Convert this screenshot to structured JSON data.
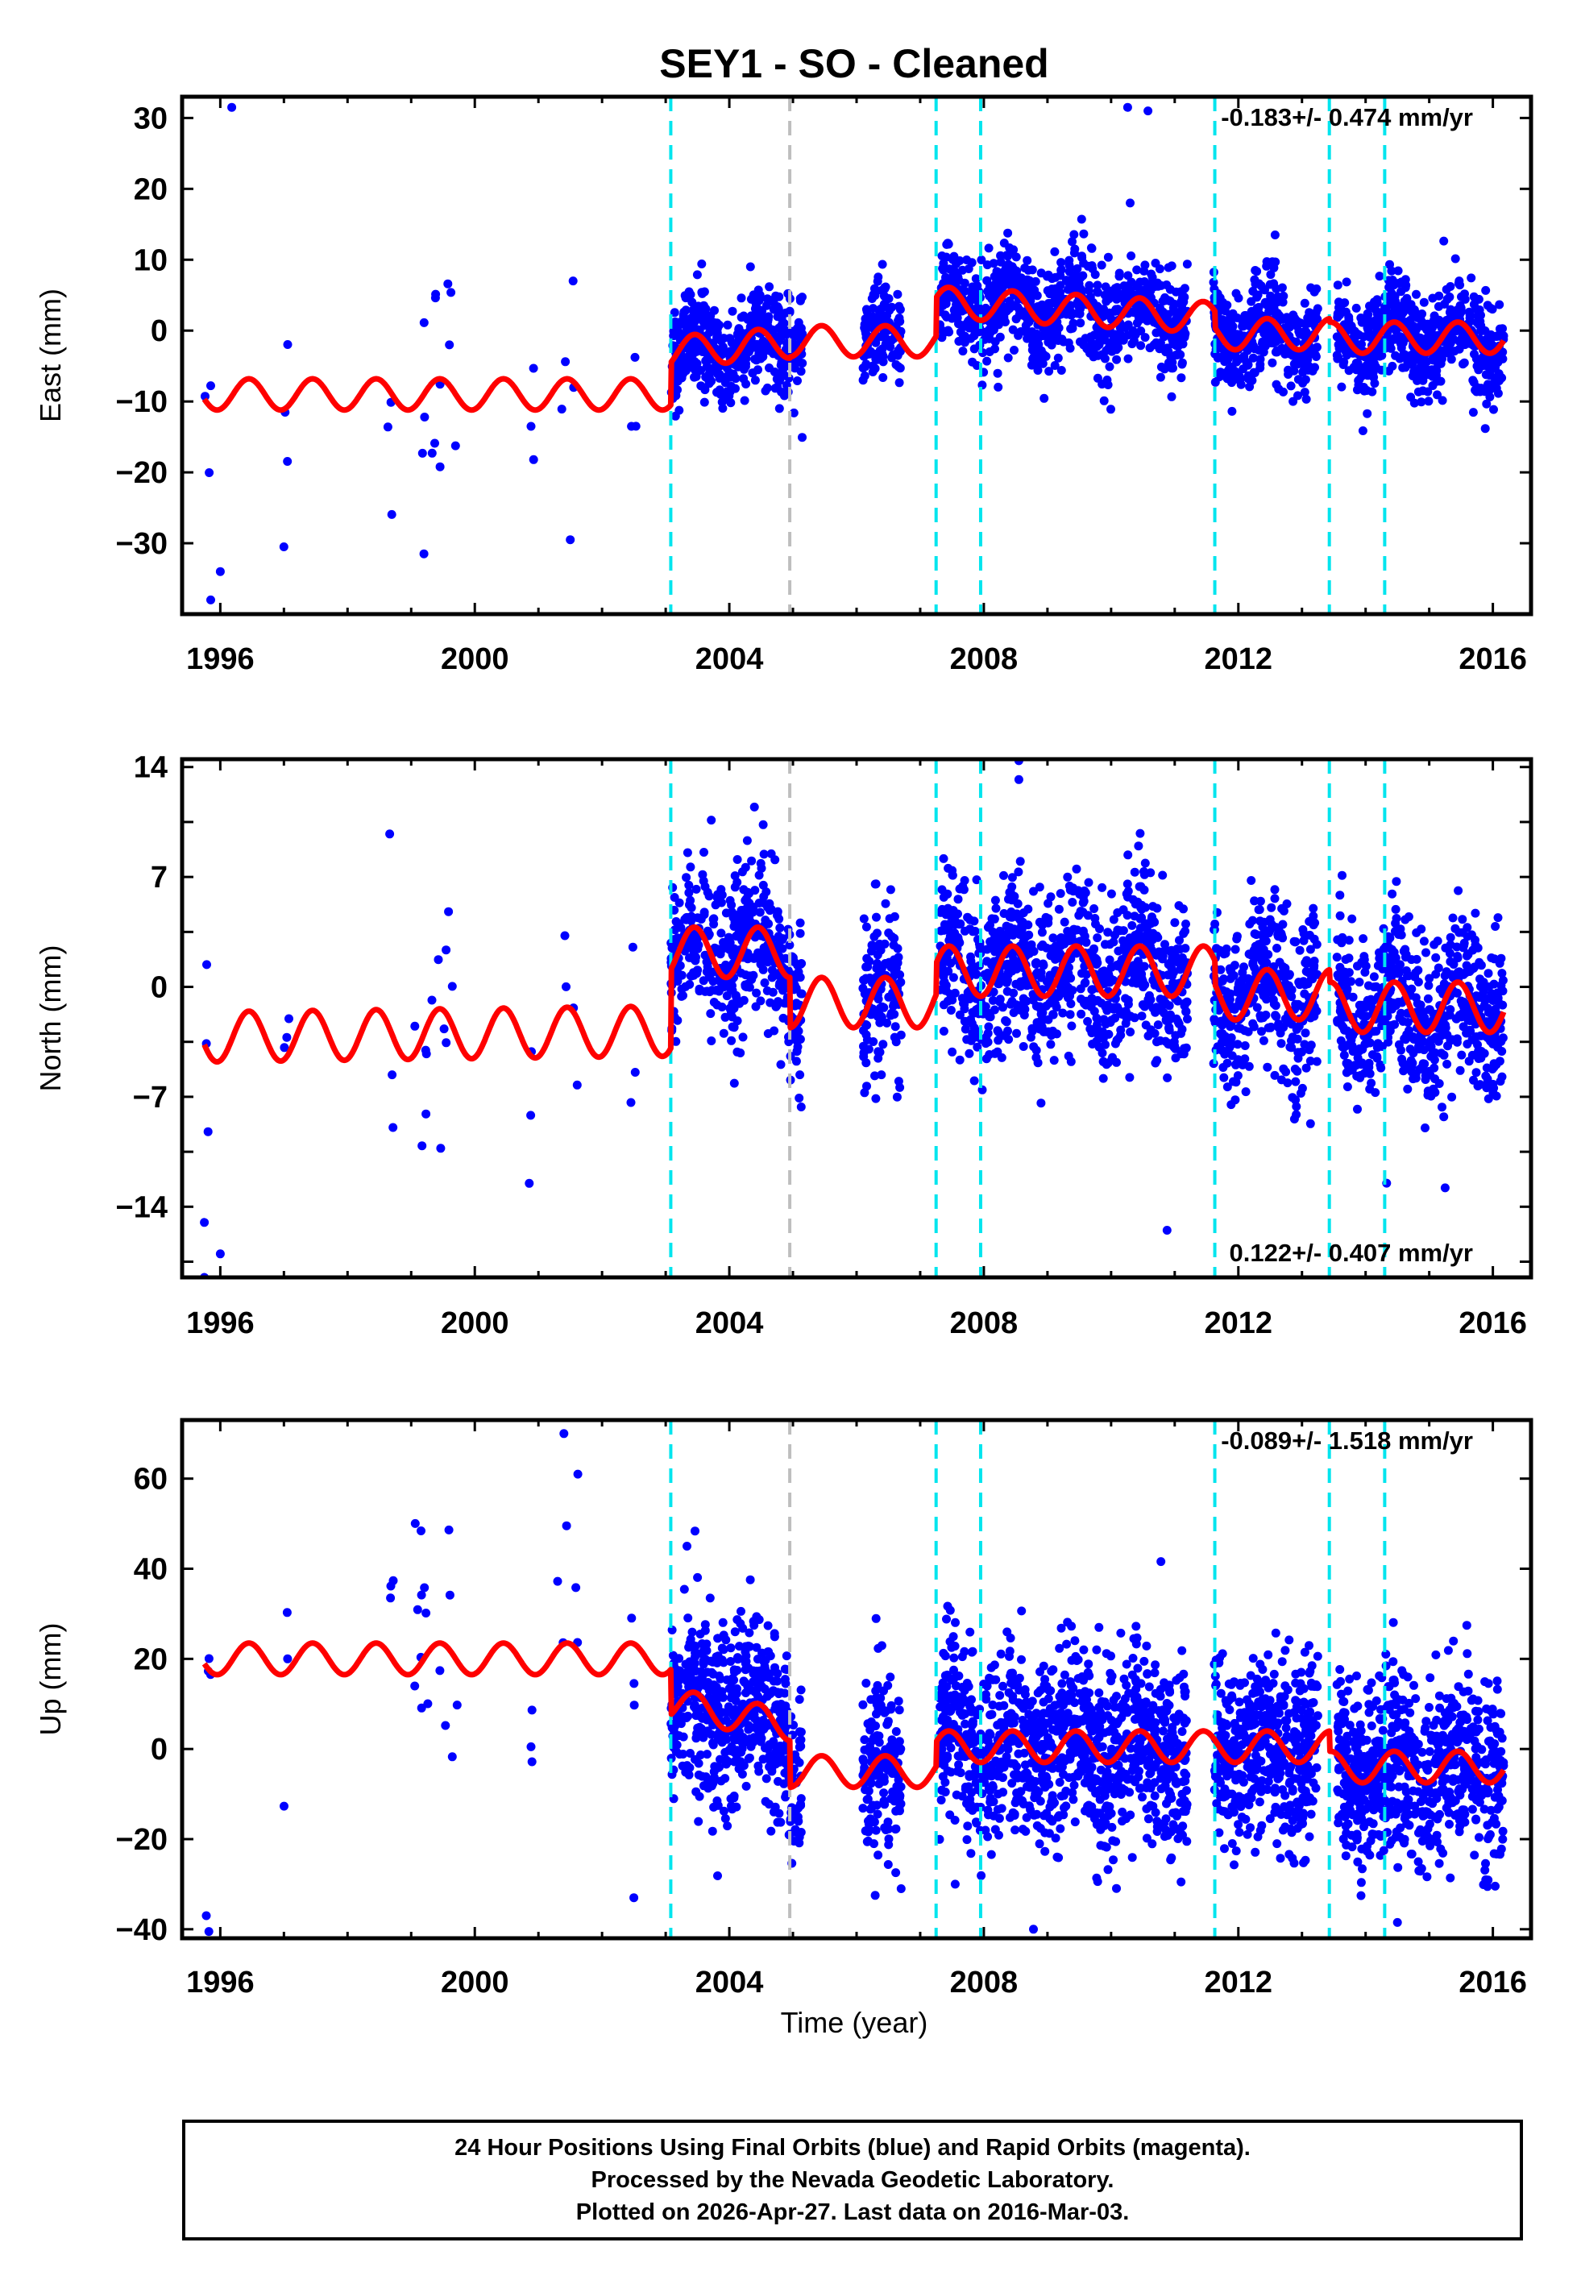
{
  "title": "SEY1  - SO - Cleaned",
  "footer": {
    "line1": "24 Hour Positions Using Final Orbits (blue) and Rapid Orbits (magenta).",
    "line2": "Processed by the Nevada Geodetic Laboratory.",
    "line3": "Plotted on 2026-Apr-27. Last data on 2016-Mar-03."
  },
  "colors": {
    "points": "#0000ff",
    "model": "#ff0000",
    "offset": "#00e5ee",
    "equip": "#bebebe"
  },
  "chart_data": {
    "type": "scatter",
    "xlabel": "Time (year)",
    "xlim": [
      1995.4,
      2016.6
    ],
    "xticks": [
      1996,
      2000,
      2004,
      2008,
      2012,
      2016
    ],
    "xminor_step": 1,
    "offset_lines": [
      2003.08,
      2007.25,
      2007.95,
      2011.63,
      2013.43,
      2014.3
    ],
    "equipment_lines": [
      2004.95
    ],
    "segments": [
      {
        "start": 1995.75,
        "end": 1995.85,
        "density": 10
      },
      {
        "start": 1997.0,
        "end": 1997.08,
        "density": 8
      },
      {
        "start": 1998.62,
        "end": 1998.72,
        "density": 8
      },
      {
        "start": 1999.05,
        "end": 1999.75,
        "density": 25
      },
      {
        "start": 2000.85,
        "end": 2000.95,
        "density": 8
      },
      {
        "start": 2001.3,
        "end": 2001.65,
        "density": 15
      },
      {
        "start": 2002.45,
        "end": 2002.55,
        "density": 8
      },
      {
        "start": 2003.08,
        "end": 2005.15,
        "density": 300
      },
      {
        "start": 2006.1,
        "end": 2006.7,
        "density": 300
      },
      {
        "start": 2007.3,
        "end": 2011.2,
        "density": 300
      },
      {
        "start": 2011.6,
        "end": 2013.25,
        "density": 300
      },
      {
        "start": 2013.55,
        "end": 2016.17,
        "density": 300
      }
    ],
    "panels": [
      {
        "ylabel": "East (mm)",
        "ylim": [
          -40,
          33
        ],
        "yticks": [
          30,
          20,
          10,
          0,
          -10,
          -20,
          -30
        ],
        "ytick_labels": [
          "30",
          "20",
          "10",
          "0",
          "−10",
          "−20",
          "−30"
        ],
        "yminor_step": 10,
        "rate": "-0.183+/- 0.474 mm/yr",
        "rate_position": "top-right",
        "model_levels": [
          {
            "until": 2003.08,
            "level": -9,
            "slope": 0
          },
          {
            "until": 2004.95,
            "level": -3,
            "slope": 0.7
          },
          {
            "until": 2007.25,
            "level": -1.5,
            "slope": 0
          },
          {
            "until": 2011.63,
            "level": 4,
            "slope": -0.5
          },
          {
            "until": 2013.43,
            "level": -0.5,
            "slope": 0
          },
          {
            "until": 2016.6,
            "level": -1,
            "slope": 0
          }
        ],
        "amplitude": 2.2,
        "noise": 3.5,
        "outlier_noise": 8,
        "extra_points": [
          [
            1996.18,
            31.5
          ],
          [
            2010.26,
            31.5
          ],
          [
            2010.58,
            31.0
          ],
          [
            2010.3,
            18.0
          ],
          [
            1995.85,
            -38.0
          ],
          [
            1999.2,
            -31.5
          ],
          [
            2001.5,
            -29.5
          ],
          [
            1996.0,
            -34.0
          ],
          [
            1997.0,
            -30.5
          ]
        ]
      },
      {
        "ylabel": "North (mm)",
        "ylim": [
          -18.5,
          14.5
        ],
        "yticks": [
          14,
          7,
          0,
          -7,
          -14
        ],
        "ytick_labels": [
          "14",
          "7",
          "0",
          "−7",
          "−14"
        ],
        "yminor_step": 3.5,
        "rate": "0.122+/- 0.407 mm/yr",
        "rate_position": "bottom-right",
        "model_levels": [
          {
            "until": 2003.08,
            "level": -3.2,
            "slope": 0.05
          },
          {
            "until": 2004.95,
            "level": 2.2,
            "slope": 0
          },
          {
            "until": 2007.25,
            "level": -1.0,
            "slope": 0
          },
          {
            "until": 2011.63,
            "level": 1.0,
            "slope": 0
          },
          {
            "until": 2013.43,
            "level": -0.5,
            "slope": 0
          },
          {
            "until": 2016.6,
            "level": -1.3,
            "slope": 0
          }
        ],
        "amplitude": 1.6,
        "noise": 2.6,
        "outlier_noise": 5,
        "extra_points": [
          [
            2008.55,
            14.4
          ],
          [
            2008.55,
            13.2
          ],
          [
            1995.75,
            -18.5
          ],
          [
            1995.75,
            -15.0
          ],
          [
            2010.88,
            -15.5
          ],
          [
            1996.0,
            -17.0
          ],
          [
            2014.33,
            -12.5
          ],
          [
            2015.25,
            -12.8
          ]
        ]
      },
      {
        "ylabel": "Up (mm)",
        "ylim": [
          -42,
          73
        ],
        "yticks": [
          60,
          40,
          20,
          0,
          -20,
          -40
        ],
        "ytick_labels": [
          "60",
          "40",
          "20",
          "0",
          "−20",
          "−40"
        ],
        "yminor_step": 20,
        "rate": "-0.089+/- 1.518 mm/yr",
        "rate_position": "top-right",
        "model_levels": [
          {
            "until": 2003.08,
            "level": 20,
            "slope": 0
          },
          {
            "until": 2004.95,
            "level": 10,
            "slope": -2.5
          },
          {
            "until": 2007.25,
            "level": -5,
            "slope": 0
          },
          {
            "until": 2011.63,
            "level": 0.5,
            "slope": 0
          },
          {
            "until": 2013.43,
            "level": 0.5,
            "slope": 0
          },
          {
            "until": 2016.6,
            "level": -4,
            "slope": 0
          }
        ],
        "amplitude": 3.5,
        "noise": 10,
        "outlier_noise": 16,
        "extra_points": [
          [
            2001.4,
            70
          ],
          [
            2001.62,
            61
          ],
          [
            2006.7,
            -31
          ],
          [
            2008.78,
            -40
          ],
          [
            2014.5,
            -38.5
          ],
          [
            1995.78,
            -37
          ],
          [
            1995.82,
            -40.5
          ],
          [
            2002.5,
            -33
          ],
          [
            2007.55,
            -30
          ]
        ]
      }
    ]
  }
}
